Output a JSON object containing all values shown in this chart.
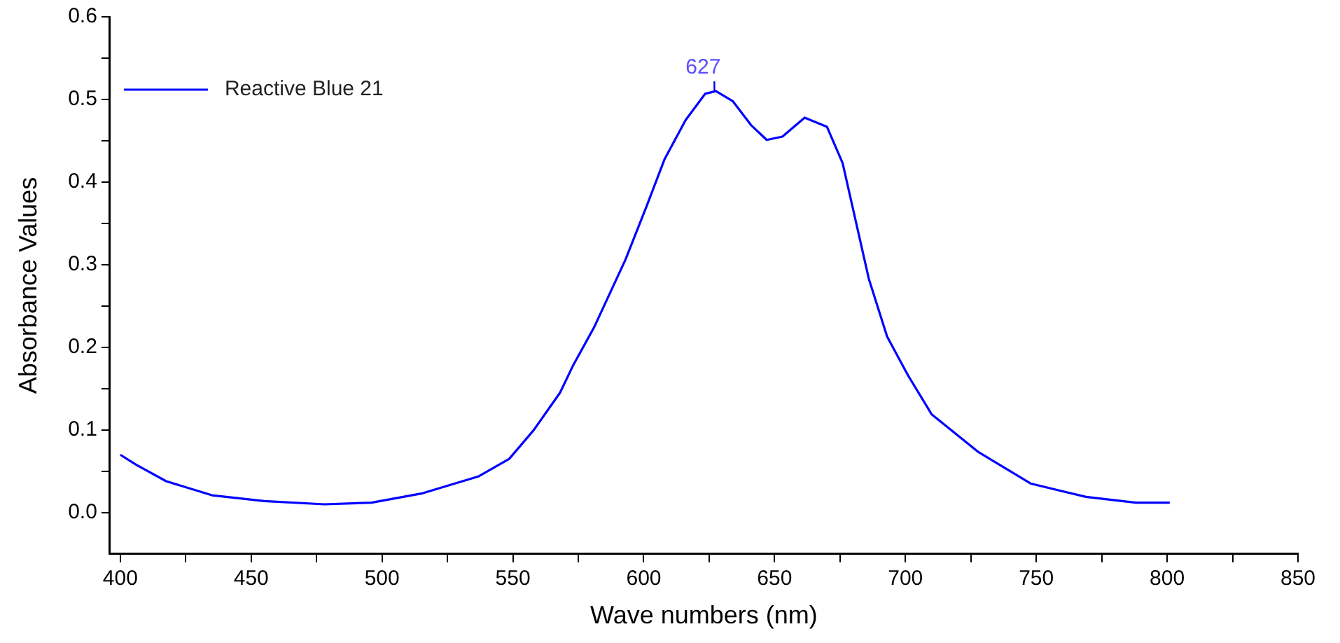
{
  "chart_data": {
    "type": "line",
    "xlabel": "Wave numbers (nm)",
    "ylabel": "Absorbance Values",
    "xlim": [
      396,
      850
    ],
    "ylim": [
      -0.05,
      0.6
    ],
    "xticks": [
      400,
      {
        "value": 425,
        "label": null
      },
      450,
      {
        "value": 475,
        "label": null
      },
      500,
      {
        "value": 525,
        "label": null
      },
      550,
      {
        "value": 575,
        "label": null
      },
      600,
      {
        "value": 625,
        "label": null
      },
      650,
      {
        "value": 675,
        "label": null
      },
      700,
      {
        "value": 725,
        "label": null
      },
      750,
      {
        "value": 775,
        "label": null
      },
      800,
      {
        "value": 825,
        "label": null
      },
      850
    ],
    "yticks": [
      {
        "value": 0,
        "label": "0.0"
      },
      {
        "value": 0.05,
        "label": null
      },
      0.1,
      {
        "value": 0.15,
        "label": null
      },
      0.2,
      {
        "value": 0.25,
        "label": null
      },
      0.3,
      {
        "value": 0.35,
        "label": null
      },
      0.4,
      {
        "value": 0.45,
        "label": null
      },
      0.5,
      {
        "value": 0.55,
        "label": null
      },
      0.6
    ],
    "grid": false,
    "legend": "top left",
    "marker": "none",
    "line_style": "solid",
    "annotations": [
      {
        "text": "627",
        "x": 627,
        "y": 0.51
      }
    ],
    "series": [
      {
        "name": "Reactive Blue 21",
        "color": "#0000ff",
        "x": [
          400,
          406,
          417.5,
          435,
          455,
          478,
          496,
          515,
          537,
          548.6,
          558,
          568,
          573,
          581,
          593,
          601,
          608,
          616,
          623.5,
          627.6,
          634,
          641,
          647,
          653,
          661.5,
          670,
          676,
          681,
          686,
          693,
          701,
          710,
          728,
          748,
          769,
          788,
          801
        ],
        "values": [
          0.07,
          0.058,
          0.038,
          0.021,
          0.014,
          0.01,
          0.012,
          0.023,
          0.044,
          0.065,
          0.1,
          0.145,
          0.178,
          0.224,
          0.306,
          0.37,
          0.428,
          0.475,
          0.507,
          0.51,
          0.498,
          0.469,
          0.451,
          0.455,
          0.478,
          0.467,
          0.423,
          0.353,
          0.283,
          0.213,
          0.166,
          0.119,
          0.073,
          0.035,
          0.019,
          0.012,
          0.012
        ]
      }
    ]
  }
}
